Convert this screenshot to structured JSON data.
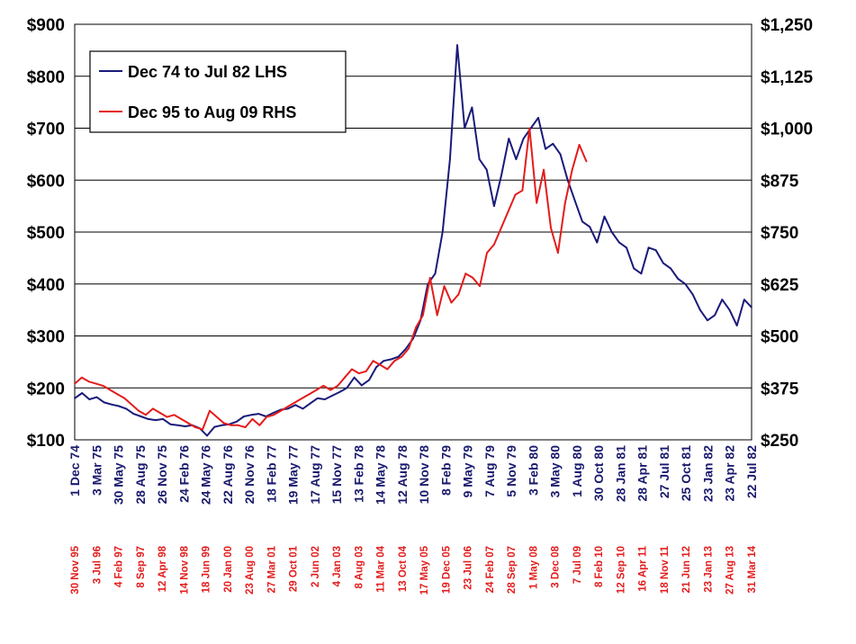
{
  "chart_data": {
    "type": "line",
    "title": "",
    "grid": "horizontal",
    "legend_position": "top-left",
    "y_left": {
      "range": [
        100,
        900
      ],
      "ticks": [
        "$100",
        "$200",
        "$300",
        "$400",
        "$500",
        "$600",
        "$700",
        "$800",
        "$900"
      ]
    },
    "y_right": {
      "range": [
        250,
        1250
      ],
      "ticks": [
        "$250",
        "$375",
        "$500",
        "$625",
        "$750",
        "$875",
        "$1,000",
        "$1,125",
        "$1,250"
      ]
    },
    "x_top_ticks": [
      "1 Dec 74",
      "3 Mar 75",
      "30 May 75",
      "28 Aug 75",
      "26 Nov 75",
      "24 Feb 76",
      "24 May 76",
      "22 Aug 76",
      "20 Nov 76",
      "18 Feb 77",
      "19 May 77",
      "17 Aug 77",
      "15 Nov 77",
      "13 Feb 78",
      "14 May 78",
      "12 Aug 78",
      "10 Nov 78",
      "8 Feb 79",
      "9 May 79",
      "7 Aug 79",
      "5 Nov 79",
      "3 Feb 80",
      "3 May 80",
      "1 Aug 80",
      "30 Oct 80",
      "28 Jan 81",
      "28 Apr 81",
      "27 Jul 81",
      "25 Oct 81",
      "23 Jan 82",
      "23 Apr 82",
      "22 Jul 82"
    ],
    "x_bottom_ticks": [
      "30 Nov 95",
      "3 Jul 96",
      "4 Feb 97",
      "8 Sep 97",
      "12 Apr 98",
      "14 Nov 98",
      "18 Jun 99",
      "20 Jan 00",
      "23 Aug 00",
      "27 Mar 01",
      "29 Oct 01",
      "2 Jun 02",
      "4 Jan 03",
      "8 Aug 03",
      "11 Mar 04",
      "13 Oct 04",
      "17 May 05",
      "19 Dec 05",
      "23 Jul 06",
      "24 Feb 07",
      "28 Sep 07",
      "1 May 08",
      "3 Dec 08",
      "7 Jul 09",
      "8 Feb 10",
      "12 Sep 10",
      "16 Apr 11",
      "18 Nov 11",
      "21 Jun 12",
      "23 Jan 13",
      "27 Aug 13",
      "31 Mar 14"
    ],
    "series": [
      {
        "name": "Dec 74 to Jul 82 LHS",
        "color": "#1a1a7a",
        "axis": "left",
        "x": [
          0,
          1,
          2,
          3,
          4,
          5,
          6,
          7,
          8,
          9,
          10,
          11,
          12,
          13,
          14,
          15,
          16,
          17,
          18,
          19,
          20,
          21,
          22,
          23,
          24,
          25,
          26,
          27,
          28,
          29,
          30,
          31,
          32,
          33,
          34,
          35,
          36,
          37,
          38,
          39,
          40,
          41,
          42,
          43,
          44,
          45,
          46,
          47,
          48,
          49,
          50,
          51,
          52,
          53,
          54,
          55,
          56,
          57,
          58,
          59,
          60,
          61,
          62,
          63,
          64,
          65,
          66,
          67,
          68,
          69,
          70,
          71,
          72,
          73,
          74,
          75,
          76,
          77,
          78,
          79,
          80,
          81,
          82,
          83,
          84,
          85,
          86,
          87,
          88,
          89,
          90,
          91,
          92
        ],
        "values": [
          180,
          190,
          178,
          182,
          172,
          168,
          165,
          160,
          150,
          145,
          140,
          138,
          140,
          130,
          128,
          126,
          128,
          122,
          108,
          125,
          128,
          130,
          135,
          145,
          148,
          150,
          145,
          152,
          158,
          160,
          167,
          160,
          170,
          180,
          178,
          185,
          192,
          200,
          220,
          205,
          215,
          240,
          252,
          255,
          260,
          275,
          295,
          330,
          400,
          420,
          500,
          640,
          860,
          700,
          740,
          640,
          620,
          550,
          610,
          680,
          640,
          680,
          700,
          720,
          660,
          670,
          650,
          600,
          560,
          520,
          510,
          480,
          530,
          500,
          480,
          470,
          430,
          420,
          470,
          465,
          440,
          430,
          410,
          400,
          380,
          350,
          330,
          340,
          370,
          350,
          320,
          370,
          355
        ]
      },
      {
        "name": "Dec 95 to Aug 09 RHS",
        "color": "#e31c1c",
        "axis": "right",
        "x": [
          0,
          1,
          2,
          3,
          4,
          5,
          6,
          7,
          8,
          9,
          10,
          11,
          12,
          13,
          14,
          15,
          16,
          17,
          18,
          19,
          20,
          21,
          22,
          23,
          24,
          25,
          26,
          27,
          28,
          29,
          30,
          31,
          32,
          33,
          34,
          35,
          36,
          37,
          38,
          39,
          40,
          41,
          42,
          43,
          44,
          45,
          46,
          47,
          48,
          49,
          50,
          51,
          52,
          53,
          54,
          55,
          56,
          57,
          58,
          59,
          60,
          61,
          62,
          63,
          64,
          65,
          66,
          67,
          68,
          69,
          70,
          71,
          72
        ],
        "values": [
          385,
          400,
          390,
          385,
          380,
          370,
          360,
          350,
          335,
          320,
          310,
          325,
          315,
          305,
          310,
          300,
          290,
          280,
          275,
          320,
          305,
          290,
          285,
          285,
          280,
          300,
          285,
          305,
          310,
          320,
          330,
          340,
          350,
          360,
          370,
          380,
          370,
          380,
          400,
          420,
          410,
          415,
          440,
          430,
          420,
          440,
          450,
          470,
          520,
          550,
          640,
          550,
          620,
          580,
          600,
          650,
          640,
          620,
          700,
          720,
          760,
          800,
          840,
          850,
          1000,
          820,
          900,
          760,
          700,
          820,
          900,
          960,
          920
        ]
      }
    ]
  },
  "legend": {
    "item1": "Dec 74 to Jul 82 LHS",
    "item2": "Dec 95 to Aug 09 RHS"
  }
}
